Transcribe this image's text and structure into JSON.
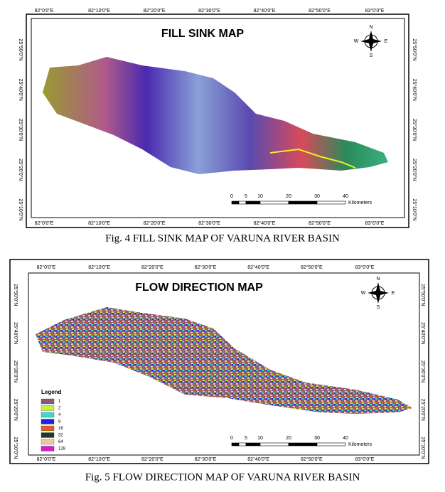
{
  "figures": [
    {
      "title": "FILL SINK MAP",
      "top_labels": [
        "82°0'0\"E",
        "82°10'0\"E",
        "82°20'0\"E",
        "82°30'0\"E",
        "82°40'0\"E",
        "82°50'0\"E",
        "83°0'0\"E"
      ],
      "bottom_labels": [
        "82°0'0\"E",
        "82°10'0\"E",
        "82°20'0\"E",
        "82°30'0\"E",
        "82°40'0\"E",
        "82°50'0\"E",
        "83°0'0\"E"
      ],
      "left_labels": [
        "25°50'0\"N",
        "25°40'0\"N",
        "25°30'0\"N",
        "25°20'0\"N",
        "25°10'0\"N"
      ],
      "right_labels": [
        "25°50'0\"N",
        "25°40'0\"N",
        "25°30'0\"N",
        "25°20'0\"N",
        "25°10'0\"N"
      ],
      "compass": {
        "n": "N",
        "s": "S",
        "e": "E",
        "w": "W"
      },
      "scale": {
        "ticks": [
          "0",
          "5",
          "10",
          "20",
          "30",
          "40"
        ],
        "unit": "Kilometers"
      },
      "caption": "Fig. 4 FILL SINK MAP OF VARUNA RIVER BASIN"
    },
    {
      "title": "FLOW DIRECTION MAP",
      "top_labels": [
        "82°0'0\"E",
        "82°10'0\"E",
        "82°20'0\"E",
        "82°30'0\"E",
        "82°40'0\"E",
        "82°50'0\"E",
        "83°0'0\"E"
      ],
      "bottom_labels": [
        "82°0'0\"E",
        "82°10'0\"E",
        "82°20'0\"E",
        "82°30'0\"E",
        "82°40'0\"E",
        "82°50'0\"E",
        "83°0'0\"E"
      ],
      "left_labels": [
        "25°50'0\"N",
        "25°40'0\"N",
        "25°30'0\"N",
        "25°20'0\"N",
        "25°10'0\"N"
      ],
      "right_labels": [
        "25°50'0\"N",
        "25°40'0\"N",
        "25°30'0\"N",
        "25°20'0\"N",
        "25°10'0\"N"
      ],
      "compass": {
        "n": "N",
        "s": "S",
        "e": "E",
        "w": "W"
      },
      "scale": {
        "ticks": [
          "0",
          "5",
          "10",
          "20",
          "30",
          "40"
        ],
        "unit": "Kilometers"
      },
      "legend": {
        "title": "Legend",
        "items": [
          {
            "label": "1",
            "color": "#8a5a7a"
          },
          {
            "label": "2",
            "color": "#c8f03c"
          },
          {
            "label": "4",
            "color": "#3cd8d0"
          },
          {
            "label": "8",
            "color": "#2a1ee0"
          },
          {
            "label": "16",
            "color": "#d8641e"
          },
          {
            "label": "32",
            "color": "#1e3c1e"
          },
          {
            "label": "64",
            "color": "#f0c8a0"
          },
          {
            "label": "128",
            "color": "#d21ec8"
          }
        ]
      },
      "caption": "Fig. 5 FLOW DIRECTION MAP OF VARUNA RIVER BASIN"
    }
  ]
}
